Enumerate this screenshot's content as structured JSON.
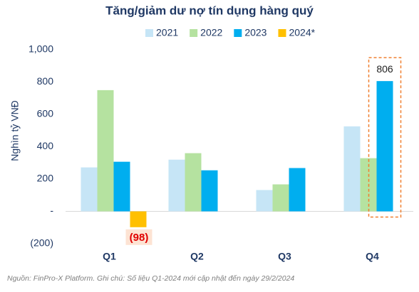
{
  "chart_data": {
    "type": "bar",
    "title": "Tăng/giảm dư nợ tín dụng hàng quý",
    "ylabel": "Nghìn tỷ VNĐ",
    "note": "Nguồn: FinPro-X Platform. Ghi chú: Số liệu Q1-2024 mới cập nhật đến ngày 29/2/2024",
    "categories": [
      "Q1",
      "Q2",
      "Q3",
      "Q4"
    ],
    "series": [
      {
        "name": "2021",
        "color": "#c6e5f6",
        "values": [
          272,
          320,
          132,
          526
        ]
      },
      {
        "name": "2022",
        "color": "#b5e2a0",
        "values": [
          750,
          360,
          167,
          329
        ]
      },
      {
        "name": "2023",
        "color": "#00aeef",
        "values": [
          307,
          254,
          268,
          806
        ],
        "value_labels": [
          null,
          null,
          null,
          "806"
        ]
      },
      {
        "name": "2024*",
        "color": "#ffc000",
        "values": [
          -98,
          null,
          null,
          null
        ],
        "value_labels": [
          "(98)",
          null,
          null,
          null
        ]
      }
    ],
    "ylim": [
      -200,
      1000
    ],
    "yticks": [
      {
        "value": -200,
        "label": "(200)"
      },
      {
        "value": 0,
        "label": "-"
      },
      200,
      400,
      600,
      800,
      {
        "value": 1000,
        "label": "1,000"
      }
    ],
    "grid": false,
    "legend": "top"
  }
}
